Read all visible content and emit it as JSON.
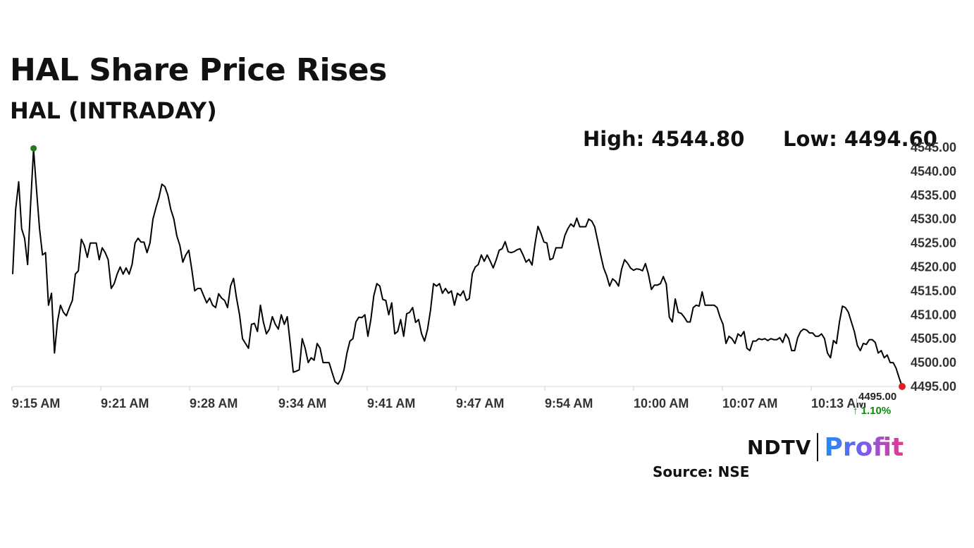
{
  "header": {
    "title": "HAL Share Price Rises",
    "subtitle": "HAL (INTRADAY)"
  },
  "stats": {
    "high_label": "High: 4544.80",
    "low_label": "Low: 4494.60"
  },
  "last": {
    "price_label": "4495.00",
    "change_label": "↑ 1.10%"
  },
  "footer": {
    "logo_left": "NDTV",
    "logo_right": "Profit",
    "source": "Source: NSE"
  },
  "colors": {
    "line": "#000000",
    "high_marker": "#1a7f1a",
    "last_marker": "#e02020",
    "change_up": "#0a8a0a"
  },
  "chart_data": {
    "type": "line",
    "x_tick_labels": [
      "9:15 AM",
      "9:21 AM",
      "9:28 AM",
      "9:34 AM",
      "9:41 AM",
      "9:47 AM",
      "9:54 AM",
      "10:00 AM",
      "10:07 AM",
      "10:13 AM"
    ],
    "y_tick_labels": [
      "4545.00",
      "4540.00",
      "4535.00",
      "4530.00",
      "4525.00",
      "4520.00",
      "4515.00",
      "4510.00",
      "4505.00",
      "4500.00",
      "4495.00"
    ],
    "ylim": [
      4495,
      4545
    ],
    "grid": false,
    "high": 4544.8,
    "low": 4494.6,
    "last": 4495.0,
    "series": [
      {
        "values": [
          4518.5,
          4532,
          4537.8,
          4528,
          4526,
          4520.5,
          4533,
          4544.6,
          4536,
          4528,
          4522.5,
          4523,
          4512,
          4514.5,
          4502,
          4508.5,
          4512,
          4510.5,
          4509.8,
          4511.5,
          4513,
          4518.5,
          4519.2,
          4525.8,
          4524.5,
          4522,
          4525,
          4525,
          4525,
          4521.5,
          4524,
          4523,
          4521.5,
          4515.5,
          4516.5,
          4518.5,
          4520,
          4518.5,
          4519.8,
          4518.5,
          4520.5,
          4525,
          4526,
          4525.2,
          4525.2,
          4523,
          4525,
          4530,
          4532.4,
          4534.5,
          4537.3,
          4536.8,
          4535,
          4532,
          4530,
          4526.5,
          4524.5,
          4521,
          4522.5,
          4523.5,
          4519.5,
          4515,
          4515.5,
          4515.5,
          4514,
          4512.5,
          4513.5,
          4512,
          4511.5,
          4514.4,
          4513.5,
          4513,
          4511.5,
          4516,
          4517.6,
          4513.5,
          4510,
          4505,
          4504,
          4503,
          4508,
          4508.2,
          4506.5,
          4512,
          4508.5,
          4506,
          4507,
          4509.6,
          4508,
          4507,
          4510,
          4508,
          4509.6,
          4504,
          4498,
          4498.2,
          4498.5,
          4505,
          4503,
          4500,
          4501,
          4500.5,
          4504,
          4503,
          4500,
          4500,
          4500,
          4498,
          4496,
          4495.5,
          4496.5,
          4498.5,
          4502,
          4504.5,
          4505,
          4508.5,
          4509.5,
          4509.4,
          4510,
          4505.5,
          4509,
          4514,
          4516.5,
          4516,
          4513.2,
          4513,
          4510,
          4512.5,
          4506,
          4506.5,
          4509,
          4505.5,
          4510.2,
          4510.5,
          4511.5,
          4508.4,
          4509,
          4506,
          4504.5,
          4507,
          4511,
          4516.5,
          4516,
          4516.5,
          4514.5,
          4515.5,
          4514.5,
          4515,
          4512,
          4514.5,
          4514,
          4515,
          4513,
          4513.4,
          4518.6,
          4520,
          4520.5,
          4522.5,
          4521.2,
          4522.5,
          4521.2,
          4519.8,
          4521.5,
          4523.5,
          4523.8,
          4525.3,
          4523.2,
          4523,
          4523.2,
          4523.6,
          4523.8,
          4522.5,
          4521,
          4521.6,
          4520.4,
          4524.8,
          4528.5,
          4527,
          4525.2,
          4525,
          4521.5,
          4521.8,
          4524,
          4524,
          4524,
          4526.6,
          4528,
          4529,
          4528.4,
          4530.2,
          4528.4,
          4528.4,
          4528.4,
          4530,
          4529.6,
          4528.4,
          4525.5,
          4522.5,
          4519.8,
          4518.2,
          4516,
          4517.5,
          4517,
          4516,
          4519.5,
          4521.5,
          4520.8,
          4519.8,
          4519.3,
          4519.6,
          4519.5,
          4519.2,
          4520.7,
          4518.5,
          4515.3,
          4516.2,
          4516.2,
          4516.5,
          4518,
          4516.4,
          4509.5,
          4508.5,
          4513.3,
          4510.5,
          4510.3,
          4509.5,
          4508.5,
          4508.5,
          4511.5,
          4512,
          4511.8,
          4514.8,
          4512,
          4512,
          4512,
          4512,
          4511.5,
          4509.5,
          4508,
          4504,
          4505.5,
          4505,
          4504,
          4506,
          4505.5,
          4506.5,
          4503,
          4502.5,
          4504.5,
          4504.5,
          4505,
          4504.8,
          4505,
          4504.6,
          4505,
          4504.8,
          4504.8,
          4505.2,
          4504.2,
          4506,
          4505,
          4502.5,
          4502.5,
          4505.2,
          4506.5,
          4507,
          4506.8,
          4506.2,
          4506.2,
          4505.5,
          4505.5,
          4506,
          4505,
          4502,
          4501,
          4504.6,
          4504,
          4508.5,
          4511.8,
          4511.5,
          4510.5,
          4508.5,
          4506.5,
          4503.6,
          4502.5,
          4504,
          4503.8,
          4504.8,
          4504.8,
          4504.2,
          4502,
          4502.5,
          4501,
          4501.6,
          4500,
          4500,
          4498.8,
          4496.8,
          4495
        ]
      }
    ]
  }
}
